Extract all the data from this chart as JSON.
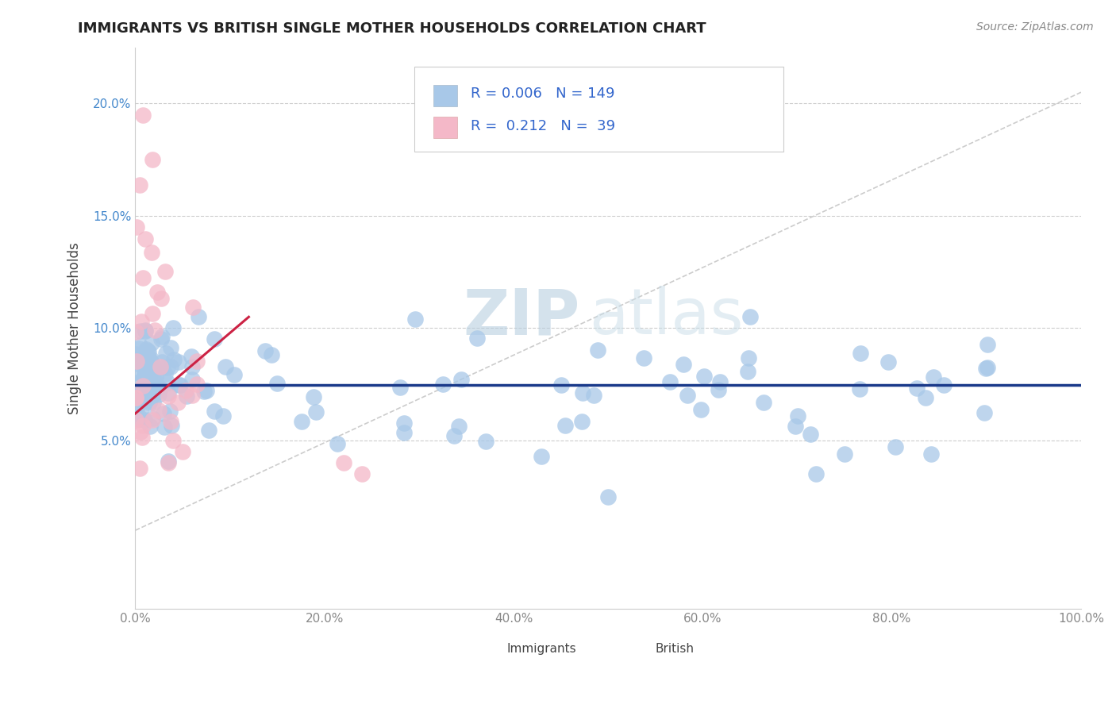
{
  "title": "IMMIGRANTS VS BRITISH SINGLE MOTHER HOUSEHOLDS CORRELATION CHART",
  "source": "Source: ZipAtlas.com",
  "ylabel": "Single Mother Households",
  "xlim": [
    0.0,
    1.0
  ],
  "ylim": [
    -0.025,
    0.225
  ],
  "xticks": [
    0.0,
    0.2,
    0.4,
    0.6,
    0.8,
    1.0
  ],
  "xtick_labels": [
    "0.0%",
    "20.0%",
    "40.0%",
    "60.0%",
    "80.0%",
    "100.0%"
  ],
  "yticks": [
    0.05,
    0.1,
    0.15,
    0.2
  ],
  "ytick_labels": [
    "5.0%",
    "10.0%",
    "15.0%",
    "20.0%"
  ],
  "legend_immigrants_label": "Immigrants",
  "legend_british_label": "British",
  "immigrants_color": "#a8c8e8",
  "british_color": "#f4b8c8",
  "immigrants_R": 0.006,
  "immigrants_N": 149,
  "british_R": 0.212,
  "british_N": 39,
  "immigrants_line_color": "#1a3a8a",
  "british_line_color": "#cc2244",
  "diag_line_color": "#cccccc",
  "watermark_color": "#d8e8f0",
  "background_color": "#ffffff",
  "grid_color": "#cccccc",
  "title_color": "#222222",
  "axis_label_color": "#444444",
  "tick_color_y": "#4488cc",
  "tick_color_x": "#888888",
  "source_color": "#888888",
  "legend_text_color": "#333333",
  "legend_num_color": "#3366cc"
}
